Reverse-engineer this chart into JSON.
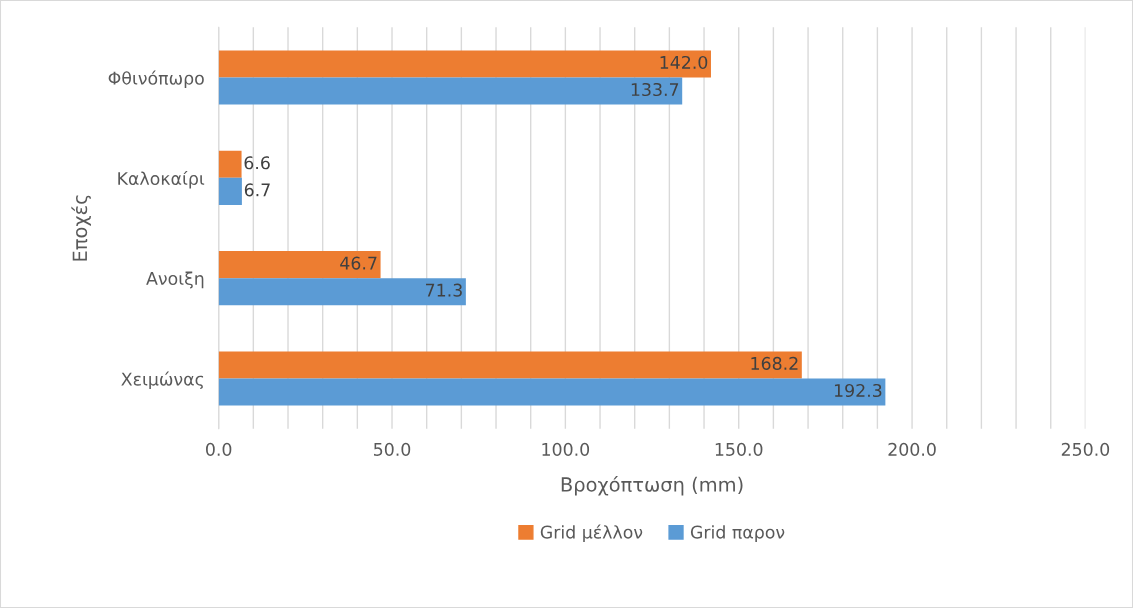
{
  "chart_data": {
    "type": "bar",
    "orientation": "horizontal",
    "xlabel": "Βροχόπτωση (mm)",
    "ylabel": "Εποχές",
    "categories": [
      "Φθινόπωρο",
      "Καλοκαίρι",
      "Ανοιξη",
      "Χειμώνας"
    ],
    "series": [
      {
        "name": "Grid μέλλον",
        "color": "#ed7d31",
        "values": [
          142.0,
          6.6,
          46.7,
          168.2
        ],
        "value_labels": [
          "142.0",
          "6.6",
          "46.7",
          "168.2"
        ]
      },
      {
        "name": "Grid παρον",
        "color": "#5b9bd5",
        "values": [
          133.7,
          6.7,
          71.3,
          192.3
        ],
        "value_labels": [
          "133.7",
          "6.7",
          "71.3",
          "192.3"
        ]
      }
    ],
    "xlim": [
      0,
      250
    ],
    "xticks": [
      {
        "value": 0,
        "label": "0.0"
      },
      {
        "value": 10,
        "label": null
      },
      {
        "value": 20,
        "label": null
      },
      {
        "value": 30,
        "label": null
      },
      {
        "value": 40,
        "label": null
      },
      {
        "value": 50,
        "label": "50.0"
      },
      {
        "value": 60,
        "label": null
      },
      {
        "value": 70,
        "label": null
      },
      {
        "value": 80,
        "label": null
      },
      {
        "value": 90,
        "label": null
      },
      {
        "value": 100,
        "label": "100.0"
      },
      {
        "value": 110,
        "label": null
      },
      {
        "value": 120,
        "label": null
      },
      {
        "value": 130,
        "label": null
      },
      {
        "value": 140,
        "label": null
      },
      {
        "value": 150,
        "label": "150.0"
      },
      {
        "value": 160,
        "label": null
      },
      {
        "value": 170,
        "label": null
      },
      {
        "value": 180,
        "label": null
      },
      {
        "value": 190,
        "label": null
      },
      {
        "value": 200,
        "label": "200.0"
      },
      {
        "value": 210,
        "label": null
      },
      {
        "value": 220,
        "label": null
      },
      {
        "value": 230,
        "label": null
      },
      {
        "value": 240,
        "label": null
      },
      {
        "value": 250,
        "label": "250.0"
      }
    ],
    "grid": "x",
    "legend": "bottom"
  }
}
